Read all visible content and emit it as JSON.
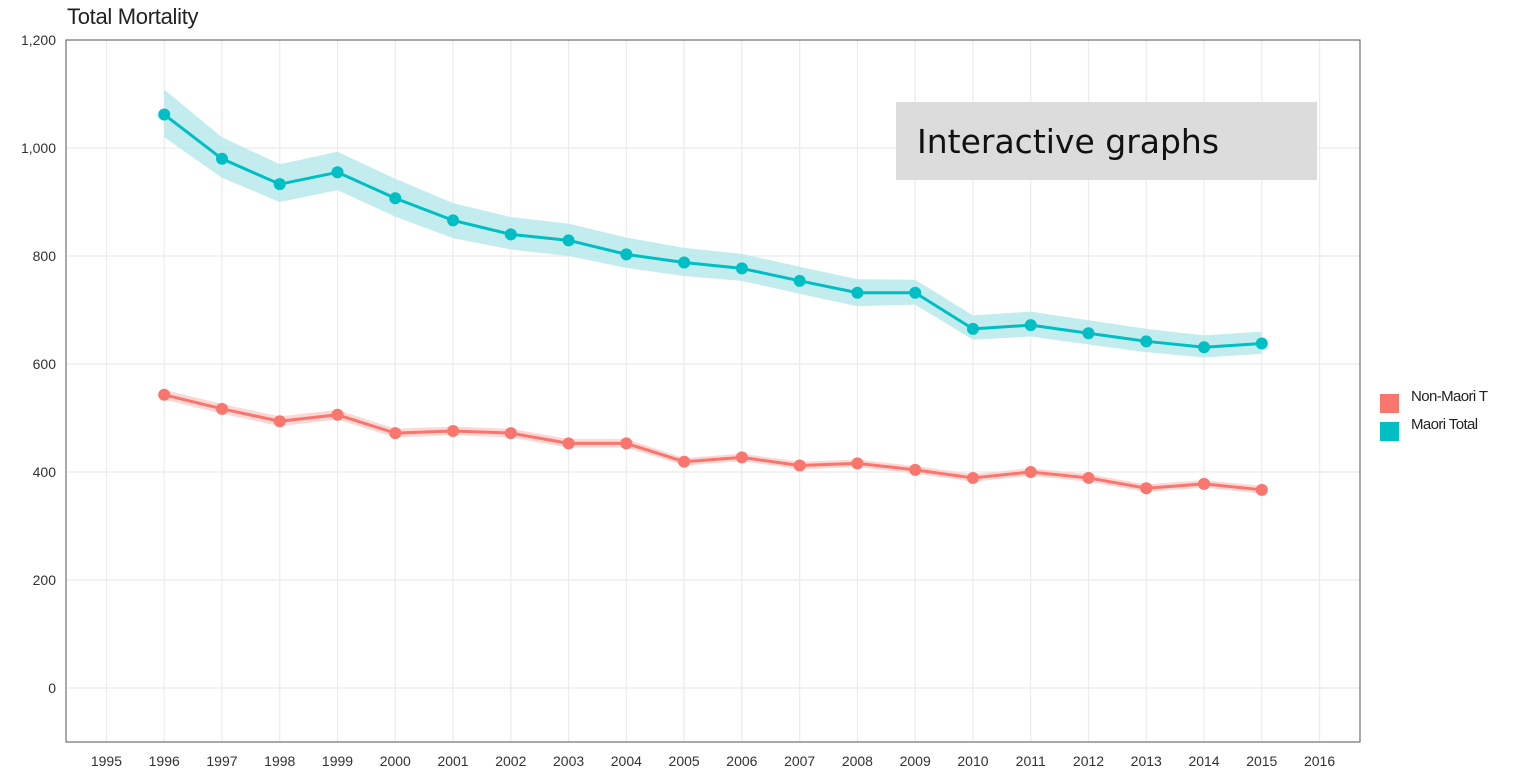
{
  "chart_data": {
    "type": "line",
    "title": "Total Mortality",
    "xlabel": "",
    "ylabel": "",
    "x": [
      1996,
      1997,
      1998,
      1999,
      2000,
      2001,
      2002,
      2003,
      2004,
      2005,
      2006,
      2007,
      2008,
      2009,
      2010,
      2011,
      2012,
      2013,
      2014,
      2015
    ],
    "x_ticks": [
      "1995",
      "1996",
      "1997",
      "1998",
      "1999",
      "2000",
      "2001",
      "2002",
      "2003",
      "2004",
      "2005",
      "2006",
      "2007",
      "2008",
      "2009",
      "2010",
      "2011",
      "2012",
      "2013",
      "2014",
      "2015",
      "2016"
    ],
    "xlim": [
      1995,
      2016
    ],
    "ylim": [
      -100,
      1200
    ],
    "y_ticks": [
      "0",
      "200",
      "400",
      "600",
      "800",
      "1,000",
      "1,200"
    ],
    "grid": true,
    "legend_position": "right",
    "series": [
      {
        "name": "Non-Maori Total",
        "legend_label": "Non-Maori T",
        "color": "#f8766d",
        "band_color": "#fbd0cc",
        "values": [
          543,
          517,
          494,
          506,
          472,
          476,
          472,
          453,
          453,
          419,
          427,
          412,
          416,
          404,
          389,
          400,
          389,
          370,
          378,
          367
        ],
        "lower": [
          534,
          508,
          485,
          497,
          464,
          468,
          464,
          445,
          445,
          412,
          420,
          405,
          409,
          397,
          382,
          393,
          382,
          363,
          371,
          360
        ],
        "upper": [
          552,
          526,
          503,
          515,
          480,
          484,
          480,
          461,
          461,
          426,
          434,
          419,
          423,
          411,
          396,
          407,
          396,
          377,
          385,
          374
        ]
      },
      {
        "name": "Maori Total",
        "legend_label": "Maori Total",
        "color": "#00bfc4",
        "band_color": "#b7e9ea",
        "values": [
          1062,
          980,
          933,
          955,
          907,
          866,
          840,
          829,
          803,
          788,
          777,
          754,
          732,
          732,
          665,
          672,
          657,
          642,
          631,
          638
        ],
        "lower": [
          1020,
          945,
          900,
          922,
          873,
          833,
          812,
          800,
          778,
          763,
          754,
          730,
          707,
          710,
          645,
          651,
          636,
          622,
          612,
          619
        ],
        "upper": [
          1108,
          1020,
          970,
          993,
          943,
          898,
          872,
          860,
          834,
          815,
          804,
          780,
          757,
          756,
          690,
          697,
          681,
          665,
          653,
          660
        ]
      }
    ]
  },
  "annotation": {
    "text": "Interactive graphs"
  }
}
